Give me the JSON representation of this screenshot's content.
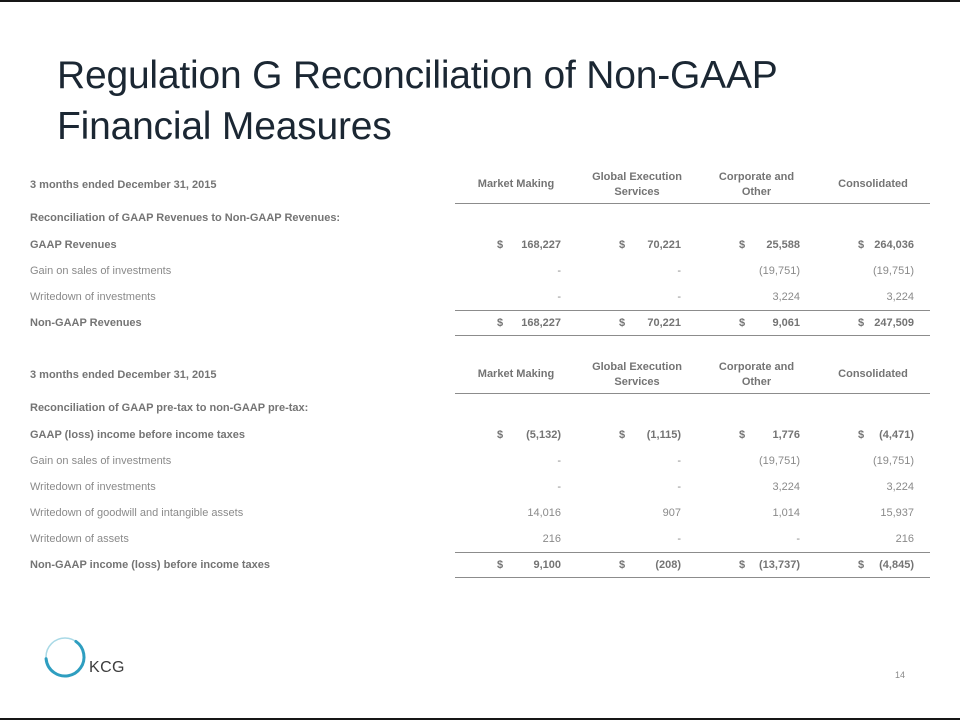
{
  "colors": {
    "title": "#1b2733",
    "table-text": "#8a8a8a",
    "table-text-strong": "#747474",
    "rule": "#8c8c8c",
    "logo-teal": "#2e9ec0"
  },
  "title": {
    "line1": "Regulation G Reconciliation of Non-GAAP",
    "line2": "Financial Measures"
  },
  "tables": [
    {
      "period_label": "3 months ended December 31, 2015",
      "columns": [
        "Market Making",
        "Global Execution Services",
        "Corporate and Other",
        "Consolidated"
      ],
      "section_label": "Reconciliation of GAAP Revenues to Non-GAAP Revenues:",
      "rows": [
        {
          "label": "GAAP Revenues",
          "bold": true,
          "dollar": "$",
          "total": false,
          "values": [
            "168,227",
            "70,221",
            "25,588",
            "264,036"
          ]
        },
        {
          "label": "Gain on sales of investments",
          "bold": false,
          "dollar": "",
          "total": false,
          "values": [
            "-",
            "-",
            "(19,751)",
            "(19,751)"
          ]
        },
        {
          "label": "Writedown of investments",
          "bold": false,
          "dollar": "",
          "total": false,
          "values": [
            "-",
            "-",
            "3,224",
            "3,224"
          ]
        },
        {
          "label": "Non-GAAP Revenues",
          "bold": true,
          "dollar": "$",
          "total": true,
          "values": [
            "168,227",
            "70,221",
            "9,061",
            "247,509"
          ]
        }
      ]
    },
    {
      "period_label": "3 months ended December 31, 2015",
      "columns": [
        "Market Making",
        "Global Execution Services",
        "Corporate and Other",
        "Consolidated"
      ],
      "section_label": "Reconciliation of GAAP pre-tax to non-GAAP pre-tax:",
      "rows": [
        {
          "label": "GAAP (loss) income before income taxes",
          "bold": true,
          "dollar": "$",
          "total": false,
          "values": [
            "(5,132)",
            "(1,115)",
            "1,776",
            "(4,471)"
          ]
        },
        {
          "label": "Gain on sales of investments",
          "bold": false,
          "dollar": "",
          "total": false,
          "values": [
            "-",
            "-",
            "(19,751)",
            "(19,751)"
          ]
        },
        {
          "label": "Writedown of investments",
          "bold": false,
          "dollar": "",
          "total": false,
          "values": [
            "-",
            "-",
            "3,224",
            "3,224"
          ]
        },
        {
          "label": "Writedown of goodwill and intangible assets",
          "bold": false,
          "dollar": "",
          "total": false,
          "values": [
            "14,016",
            "907",
            "1,014",
            "15,937"
          ]
        },
        {
          "label": "Writedown of assets",
          "bold": false,
          "dollar": "",
          "total": false,
          "values": [
            "216",
            "-",
            "-",
            "216"
          ]
        },
        {
          "label": "Non-GAAP income (loss) before income taxes",
          "bold": true,
          "dollar": "$",
          "total": true,
          "values": [
            "9,100",
            "(208)",
            "(13,737)",
            "(4,845)"
          ]
        }
      ]
    }
  ],
  "footer": {
    "logo_text": "KCG",
    "page_number": "14"
  }
}
